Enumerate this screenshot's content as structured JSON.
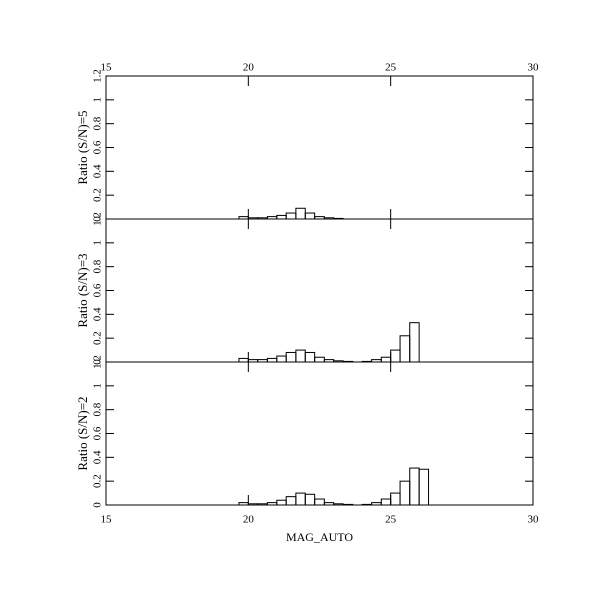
{
  "chart_data": [
    {
      "type": "histogram",
      "ylabel": "Ratio (S/N)=5",
      "xlim": [
        15,
        30
      ],
      "xticks": [
        15,
        20,
        25,
        30
      ],
      "xtick_labels": "top",
      "ylim": [
        0,
        1.2
      ],
      "yticks": [
        0,
        0.2,
        0.4,
        0.6,
        0.8,
        1,
        1.2
      ],
      "color": "#000000",
      "bins": [
        19.67,
        20,
        20.33,
        20.67,
        21,
        21.33,
        21.67,
        22,
        22.33,
        22.67,
        23,
        23.33,
        23.67,
        24,
        24.33,
        24.67,
        25,
        25.33,
        25.67,
        26,
        26.33
      ],
      "values": [
        0.02,
        0.01,
        0.01,
        0.02,
        0.03,
        0.05,
        0.09,
        0.05,
        0.02,
        0.01,
        0.005,
        0,
        0,
        0,
        0,
        0,
        0,
        0,
        0,
        0
      ]
    },
    {
      "type": "histogram",
      "ylabel": "Ratio (S/N)=3",
      "xlim": [
        15,
        30
      ],
      "xticks": [
        15,
        20,
        25,
        30
      ],
      "xtick_labels": "none",
      "ylim": [
        0,
        1.2
      ],
      "yticks": [
        0,
        0.2,
        0.4,
        0.6,
        0.8,
        1,
        1.2
      ],
      "color": "#000000",
      "bins": [
        19.67,
        20,
        20.33,
        20.67,
        21,
        21.33,
        21.67,
        22,
        22.33,
        22.67,
        23,
        23.33,
        23.67,
        24,
        24.33,
        24.67,
        25,
        25.33,
        25.67,
        26,
        26.33
      ],
      "values": [
        0.03,
        0.02,
        0.02,
        0.03,
        0.05,
        0.08,
        0.1,
        0.08,
        0.04,
        0.02,
        0.01,
        0.005,
        0,
        0.005,
        0.02,
        0.04,
        0.1,
        0.22,
        0.33,
        0
      ]
    },
    {
      "type": "histogram",
      "ylabel": "Ratio (S/N)=2",
      "xlabel": "MAG_AUTO",
      "xlim": [
        15,
        30
      ],
      "xticks": [
        15,
        20,
        25,
        30
      ],
      "xtick_labels": "bottom",
      "ylim": [
        0,
        1.2
      ],
      "yticks": [
        0,
        0.2,
        0.4,
        0.6,
        0.8,
        1,
        1.2
      ],
      "color": "#000000",
      "bins": [
        19.67,
        20,
        20.33,
        20.67,
        21,
        21.33,
        21.67,
        22,
        22.33,
        22.67,
        23,
        23.33,
        23.67,
        24,
        24.33,
        24.67,
        25,
        25.33,
        25.67,
        26,
        26.33
      ],
      "values": [
        0.02,
        0.01,
        0.01,
        0.02,
        0.04,
        0.07,
        0.1,
        0.09,
        0.05,
        0.02,
        0.01,
        0.005,
        0,
        0.005,
        0.02,
        0.05,
        0.1,
        0.2,
        0.31,
        0.3
      ]
    }
  ]
}
